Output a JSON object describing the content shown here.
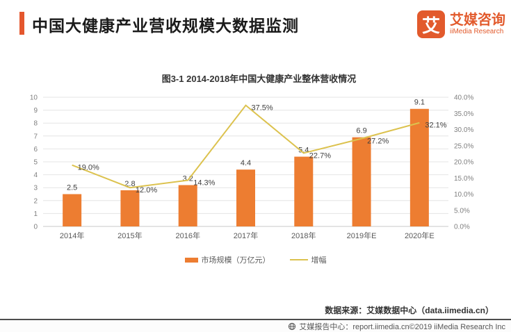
{
  "header": {
    "title": "中国大健康产业营收规模大数据监测",
    "accent_color": "#E4572E",
    "logo": {
      "glyph": "艾",
      "name_cn": "艾媒咨询",
      "name_en": "iiMedia Research",
      "brand_color": "#E25A2C"
    }
  },
  "chart_data": {
    "type": "bar",
    "title": "图3-1 2014-2018年中国大健康产业整体营收情况",
    "categories": [
      "2014年",
      "2015年",
      "2016年",
      "2017年",
      "2018年",
      "2019年E",
      "2020年E"
    ],
    "series": [
      {
        "name": "市场规模（万亿元）",
        "type": "bar",
        "axis": "left",
        "color": "#ED7D31",
        "values": [
          2.5,
          2.8,
          3.2,
          4.4,
          5.4,
          6.9,
          9.1
        ],
        "labels": [
          "2.5",
          "2.8",
          "3.2",
          "4.4",
          "5.4",
          "6.9",
          "9.1"
        ]
      },
      {
        "name": "增幅",
        "type": "line",
        "axis": "right",
        "color": "#DCC24E",
        "values": [
          19.0,
          12.0,
          14.3,
          37.5,
          22.7,
          27.2,
          32.1
        ],
        "labels": [
          "19.0%",
          "12.0%",
          "14.3%",
          "37.5%",
          "22.7%",
          "27.2%",
          "32.1%"
        ]
      }
    ],
    "left_axis": {
      "min": 0,
      "max": 10,
      "step": 1,
      "ticks": [
        "0",
        "1",
        "2",
        "3",
        "4",
        "5",
        "6",
        "7",
        "8",
        "9",
        "10"
      ]
    },
    "right_axis": {
      "min": 0,
      "max": 40,
      "step": 5,
      "ticks": [
        "0.0%",
        "5.0%",
        "10.0%",
        "15.0%",
        "20.0%",
        "25.0%",
        "30.0%",
        "35.0%",
        "40.0%"
      ]
    },
    "grid": true,
    "legend_position": "bottom"
  },
  "source_note": "数据来源：艾媒数据中心（data.iimedia.cn）",
  "footer": {
    "icon": "globe-icon",
    "text": "艾媒报告中心：report.iimedia.cn©2019 iiMedia Research Inc"
  }
}
